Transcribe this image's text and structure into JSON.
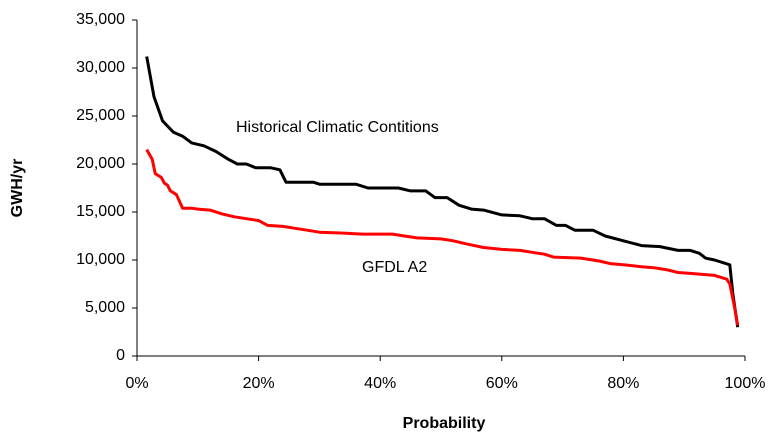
{
  "chart_data": {
    "type": "line",
    "x_label": "Probability",
    "y_label": "GWH/yr",
    "xlim": [
      0,
      100
    ],
    "ylim": [
      0,
      35000
    ],
    "xticks": [
      {
        "value": 0,
        "label": "0%"
      },
      {
        "value": 20,
        "label": "20%"
      },
      {
        "value": 40,
        "label": "40%"
      },
      {
        "value": 60,
        "label": "60%"
      },
      {
        "value": 80,
        "label": "80%"
      },
      {
        "value": 100,
        "label": "100%"
      }
    ],
    "yticks": [
      0,
      {
        "value": 5000,
        "label": "5,000"
      },
      {
        "value": 10000,
        "label": "10,000"
      },
      {
        "value": 15000,
        "label": "15,000"
      },
      {
        "value": 20000,
        "label": "20,000"
      },
      {
        "value": 25000,
        "label": "25,000"
      },
      {
        "value": 30000,
        "label": "30,000"
      },
      {
        "value": 35000,
        "label": "35,000"
      }
    ],
    "grid": false,
    "series": [
      {
        "name": "Historical Climatic Contitions",
        "color": "#000000",
        "x": [
          1.6,
          2.8,
          4.2,
          6,
          7.5,
          9,
          11,
          13,
          15,
          16.5,
          18,
          19.5,
          22,
          23.5,
          24.5,
          29,
          30,
          36,
          38,
          43,
          45,
          47.5,
          49,
          51,
          53,
          55,
          57,
          60,
          63,
          65,
          67,
          69,
          70.5,
          72,
          75,
          77,
          80,
          83,
          86,
          89,
          91,
          92.5,
          93.5,
          95,
          97.5,
          98,
          98.8
        ],
        "values": [
          31200,
          27000,
          24500,
          23300,
          22900,
          22200,
          21900,
          21300,
          20500,
          20000,
          20000,
          19600,
          19600,
          19400,
          18100,
          18100,
          17900,
          17900,
          17500,
          17500,
          17200,
          17200,
          16500,
          16500,
          15700,
          15300,
          15200,
          14700,
          14600,
          14300,
          14300,
          13600,
          13600,
          13100,
          13100,
          12500,
          12000,
          11500,
          11400,
          11000,
          11000,
          10700,
          10200,
          10000,
          9500,
          6500,
          3000
        ]
      },
      {
        "name": "GFDL A2",
        "color": "#ff0000",
        "x": [
          1.6,
          2.5,
          3,
          4,
          4.5,
          5,
          5.5,
          6.5,
          7.5,
          9,
          10,
          12,
          14,
          16,
          18,
          20,
          21.5,
          24,
          26,
          28,
          30,
          34,
          37,
          42,
          44,
          46,
          50,
          52,
          54,
          57,
          60,
          63,
          65,
          67,
          68.5,
          73,
          76,
          78,
          80,
          83,
          85,
          87,
          89,
          91,
          93,
          95,
          97,
          97.5,
          98.3,
          98.8
        ],
        "values": [
          21500,
          20500,
          19000,
          18600,
          18000,
          17800,
          17200,
          16800,
          15400,
          15400,
          15300,
          15200,
          14800,
          14500,
          14300,
          14100,
          13600,
          13500,
          13300,
          13100,
          12900,
          12800,
          12700,
          12700,
          12500,
          12300,
          12200,
          12000,
          11700,
          11300,
          11100,
          11000,
          10800,
          10600,
          10300,
          10200,
          9900,
          9600,
          9500,
          9300,
          9200,
          9000,
          8700,
          8600,
          8500,
          8400,
          8000,
          7500,
          5000,
          3200
        ]
      }
    ]
  }
}
